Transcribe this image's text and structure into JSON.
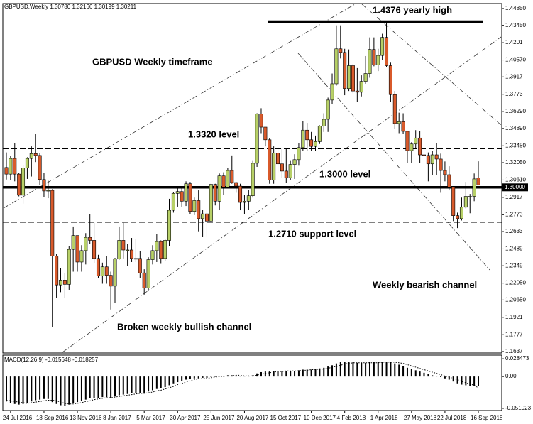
{
  "chart_data": {
    "type": "candlestick",
    "header": "GBPUSD,Weekly  1.30780 1.32166 1.30199 1.30211",
    "categories": [
      null,
      "24 Jul 2016",
      null,
      null,
      null,
      null,
      null,
      null,
      null,
      "18 Sep 2016",
      null,
      null,
      null,
      null,
      null,
      null,
      null,
      "13 Nov 2016",
      null,
      null,
      null,
      null,
      null,
      null,
      null,
      "8 Jan 2017",
      null,
      null,
      null,
      null,
      null,
      null,
      null,
      "5 Mar 2017",
      null,
      null,
      null,
      null,
      null,
      null,
      null,
      "30 Apr 2017",
      null,
      null,
      null,
      null,
      null,
      null,
      null,
      "25 Jun 2017",
      null,
      null,
      null,
      null,
      null,
      null,
      null,
      "20 Aug 2017",
      null,
      null,
      null,
      null,
      null,
      null,
      null,
      "15 Oct 2017",
      null,
      null,
      null,
      null,
      null,
      null,
      null,
      "10 Dec 2017",
      null,
      null,
      null,
      null,
      null,
      null,
      null,
      "4 Feb 2018",
      null,
      null,
      null,
      null,
      null,
      null,
      null,
      "1 Apr 2018",
      null,
      null,
      null,
      null,
      null,
      null,
      null,
      "27 May 2018",
      null,
      null,
      null,
      null,
      null,
      null,
      null,
      "22 Jul 2018",
      null,
      null,
      null,
      null,
      null,
      null,
      null,
      "16 Sep 2018"
    ],
    "open": [
      1.3165,
      1.311,
      1.324,
      1.311,
      1.2935,
      1.316,
      1.324,
      1.328,
      1.3265,
      1.3065,
      1.297,
      1.2975,
      1.243,
      1.219,
      1.223,
      1.2195,
      1.2485,
      1.26,
      1.238,
      1.2475,
      1.2585,
      1.256,
      1.241,
      1.2265,
      1.234,
      1.227,
      1.218,
      1.2405,
      1.256,
      1.248,
      1.248,
      1.241,
      1.241,
      1.229,
      1.2165,
      1.24,
      1.2475,
      1.255,
      1.241,
      1.256,
      1.281,
      1.295,
      1.2965,
      1.2885,
      1.303,
      1.28,
      1.289,
      1.274,
      1.278,
      1.272,
      1.3025,
      1.2885,
      1.3095,
      1.3,
      1.314,
      1.304,
      1.301,
      1.2875,
      1.2885,
      1.293,
      1.32,
      1.361,
      1.35,
      1.3395,
      1.306,
      1.3285,
      1.3195,
      1.3135,
      1.308,
      1.319,
      1.323,
      1.333,
      1.3475,
      1.3395,
      1.334,
      1.338,
      1.351,
      1.3565,
      1.3725,
      1.386,
      1.415,
      1.412,
      1.382,
      1.401,
      1.38,
      1.379,
      1.388,
      1.3945,
      1.4145,
      1.4015,
      1.4095,
      1.4245,
      1.401,
      1.377,
      1.353,
      1.3545,
      1.3465,
      1.3305,
      1.336,
      1.341,
      1.327,
      1.3265,
      1.3195,
      1.327,
      1.3235,
      1.314,
      1.3105,
      1.3,
      1.2765,
      1.274,
      1.2835,
      1.2925,
      1.2925,
      1.3078
    ],
    "high": [
      1.329,
      1.326,
      1.337,
      1.312,
      1.3185,
      1.325,
      1.334,
      1.3445,
      1.3285,
      1.312,
      1.3055,
      1.2985,
      1.245,
      1.233,
      1.229,
      1.251,
      1.2675,
      1.26,
      1.252,
      1.262,
      1.2775,
      1.2705,
      1.244,
      1.2375,
      1.243,
      1.23,
      1.2415,
      1.2675,
      1.2705,
      1.253,
      1.258,
      1.257,
      1.247,
      1.232,
      1.242,
      1.252,
      1.2615,
      1.256,
      1.257,
      1.2905,
      1.296,
      1.299,
      1.299,
      1.305,
      1.3045,
      1.2915,
      1.2975,
      1.2815,
      1.2815,
      1.303,
      1.303,
      1.3115,
      1.3125,
      1.316,
      1.3265,
      1.3045,
      1.303,
      1.2935,
      1.298,
      1.3225,
      1.3615,
      1.3657,
      1.35,
      1.341,
      1.334,
      1.3335,
      1.332,
      1.332,
      1.3225,
      1.3275,
      1.3365,
      1.355,
      1.3535,
      1.346,
      1.343,
      1.3515,
      1.3615,
      1.3745,
      1.3945,
      1.4345,
      1.4345,
      1.415,
      1.4145,
      1.4025,
      1.399,
      1.393,
      1.409,
      1.4245,
      1.4245,
      1.415,
      1.4275,
      1.4376,
      1.4035,
      1.38,
      1.362,
      1.3615,
      1.347,
      1.3375,
      1.3475,
      1.347,
      1.3315,
      1.329,
      1.3305,
      1.3365,
      1.328,
      1.3215,
      1.3175,
      1.3005,
      1.279,
      1.2915,
      1.3045,
      1.2945,
      1.3115,
      1.32166
    ],
    "low": [
      1.3065,
      1.306,
      1.305,
      1.2925,
      1.2865,
      1.307,
      1.309,
      1.321,
      1.302,
      1.292,
      1.291,
      1.1841,
      1.2085,
      1.213,
      1.208,
      1.215,
      1.23,
      1.23,
      1.23,
      1.236,
      1.253,
      1.237,
      1.225,
      1.22,
      1.22,
      1.1986,
      1.204,
      1.24,
      1.241,
      1.2345,
      1.238,
      1.238,
      1.225,
      1.211,
      1.214,
      1.236,
      1.238,
      1.2365,
      1.239,
      1.2515,
      1.279,
      1.284,
      1.284,
      1.2845,
      1.2775,
      1.277,
      1.2635,
      1.259,
      1.259,
      1.271,
      1.285,
      1.281,
      1.2935,
      1.299,
      1.303,
      1.2955,
      1.281,
      1.2775,
      1.2815,
      1.2915,
      1.317,
      1.345,
      1.334,
      1.303,
      1.303,
      1.3125,
      1.308,
      1.304,
      1.306,
      1.307,
      1.318,
      1.3305,
      1.3305,
      1.33,
      1.3305,
      1.336,
      1.346,
      1.346,
      1.369,
      1.3845,
      1.407,
      1.3765,
      1.38,
      1.378,
      1.371,
      1.3755,
      1.386,
      1.391,
      1.4005,
      1.3965,
      1.4055,
      1.4,
      1.371,
      1.3485,
      1.345,
      1.3445,
      1.3205,
      1.3205,
      1.3325,
      1.3205,
      1.31,
      1.305,
      1.31,
      1.31,
      1.2955,
      1.305,
      1.2975,
      1.272,
      1.2662,
      1.2725,
      1.2825,
      1.2785,
      1.2885,
      1.30199
    ],
    "close": [
      1.311,
      1.324,
      1.311,
      1.2935,
      1.316,
      1.324,
      1.328,
      1.3265,
      1.3065,
      1.297,
      1.2975,
      1.243,
      1.219,
      1.223,
      1.2195,
      1.2485,
      1.26,
      1.238,
      1.2475,
      1.2585,
      1.256,
      1.241,
      1.2265,
      1.234,
      1.227,
      1.218,
      1.2405,
      1.256,
      1.248,
      1.248,
      1.241,
      1.241,
      1.229,
      1.2165,
      1.24,
      1.2475,
      1.255,
      1.241,
      1.256,
      1.281,
      1.295,
      1.2965,
      1.2885,
      1.303,
      1.28,
      1.289,
      1.274,
      1.278,
      1.272,
      1.3025,
      1.2885,
      1.3095,
      1.3,
      1.314,
      1.304,
      1.301,
      1.2875,
      1.2885,
      1.293,
      1.32,
      1.361,
      1.35,
      1.3395,
      1.306,
      1.3285,
      1.3195,
      1.3135,
      1.308,
      1.319,
      1.323,
      1.333,
      1.3475,
      1.3395,
      1.334,
      1.338,
      1.351,
      1.3565,
      1.3725,
      1.386,
      1.415,
      1.412,
      1.382,
      1.401,
      1.38,
      1.379,
      1.388,
      1.3945,
      1.4145,
      1.4015,
      1.4095,
      1.4245,
      1.401,
      1.377,
      1.353,
      1.3545,
      1.3465,
      1.3305,
      1.336,
      1.341,
      1.327,
      1.3265,
      1.3195,
      1.327,
      1.3235,
      1.314,
      1.3105,
      1.3,
      1.2765,
      1.274,
      1.2835,
      1.2925,
      1.2925,
      1.307,
      1.30211
    ],
    "up_color": "#b7d067",
    "down_color": "#d95a2b",
    "ylim": [
      1.1625,
      1.4526
    ],
    "yticks": [
      {
        "value": 1.4485,
        "label": "1.44850"
      },
      {
        "value": 1.4345,
        "label": "1.43450"
      },
      1.4201,
      {
        "value": 1.4057,
        "label": "1.40570"
      },
      1.3917,
      1.3773,
      {
        "value": 1.3629,
        "label": "1.36290"
      },
      {
        "value": 1.3489,
        "label": "1.34890"
      },
      {
        "value": 1.3345,
        "label": "1.33450"
      },
      {
        "value": 1.3205,
        "label": "1.32050"
      },
      {
        "value": 1.3061,
        "label": "1.30610"
      },
      1.2917,
      1.2773,
      1.2633,
      1.2489,
      1.2349,
      {
        "value": 1.2205,
        "label": "1.22050"
      },
      {
        "value": 1.2065,
        "label": "1.20650"
      },
      1.1921,
      1.1777,
      1.1637
    ],
    "price_marker": {
      "value": 1.3,
      "label": "1.30000"
    },
    "hlines": [
      {
        "value": 1.4376,
        "style": "thick"
      },
      {
        "value": 1.332,
        "style": "dashed"
      },
      {
        "value": 1.3,
        "style": "thick"
      },
      {
        "value": 1.271,
        "style": "dashed"
      }
    ],
    "annotations": [
      "GBPUSD Weekly timeframe",
      "1.4376 yearly high",
      "1.3320  level",
      "1.3000  level",
      "1.2710 support level",
      "Weekly bearish channel",
      "Broken weekly bullish channel"
    ],
    "macd": {
      "title": "MACD(12,26,9) -0.015648 -0.018257",
      "ylim": [
        -0.0545,
        0.0343
      ],
      "yticks": [
        0.028473,
        {
          "value": 0,
          "label": "0.00"
        },
        -0.051023
      ],
      "histogram": [
        -0.04,
        -0.042,
        -0.044,
        -0.045,
        -0.044,
        -0.042,
        -0.04,
        -0.038,
        -0.037,
        -0.036,
        -0.036,
        -0.041,
        -0.044,
        -0.046,
        -0.047,
        -0.045,
        -0.042,
        -0.041,
        -0.039,
        -0.037,
        -0.035,
        -0.034,
        -0.034,
        -0.033,
        -0.033,
        -0.034,
        -0.032,
        -0.03,
        -0.029,
        -0.028,
        -0.027,
        -0.026,
        -0.026,
        -0.026,
        -0.024,
        -0.022,
        -0.02,
        -0.019,
        -0.017,
        -0.014,
        -0.011,
        -0.009,
        -0.007,
        -0.005,
        -0.004,
        -0.003,
        -0.003,
        -0.002,
        -0.002,
        0.0,
        0.0,
        0.001,
        0.001,
        0.002,
        0.002,
        0.002,
        0.001,
        0.001,
        0.001,
        0.002,
        0.005,
        0.007,
        0.008,
        0.008,
        0.009,
        0.009,
        0.009,
        0.009,
        0.009,
        0.009,
        0.01,
        0.011,
        0.011,
        0.011,
        0.012,
        0.013,
        0.014,
        0.016,
        0.018,
        0.021,
        0.023,
        0.023,
        0.023,
        0.023,
        0.022,
        0.022,
        0.022,
        0.023,
        0.023,
        0.023,
        0.024,
        0.024,
        0.023,
        0.021,
        0.019,
        0.017,
        0.014,
        0.012,
        0.01,
        0.008,
        0.006,
        0.004,
        0.002,
        0.001,
        -0.001,
        -0.003,
        -0.005,
        -0.008,
        -0.011,
        -0.013,
        -0.014,
        -0.015,
        -0.015,
        -0.015648
      ],
      "signal": [
        -0.038,
        -0.039,
        -0.04,
        -0.041,
        -0.042,
        -0.043,
        -0.042,
        -0.041,
        -0.04,
        -0.039,
        -0.038,
        -0.038,
        -0.039,
        -0.041,
        -0.043,
        -0.044,
        -0.044,
        -0.043,
        -0.042,
        -0.04,
        -0.039,
        -0.037,
        -0.036,
        -0.035,
        -0.034,
        -0.034,
        -0.033,
        -0.032,
        -0.031,
        -0.03,
        -0.029,
        -0.028,
        -0.027,
        -0.027,
        -0.026,
        -0.025,
        -0.023,
        -0.022,
        -0.02,
        -0.018,
        -0.016,
        -0.013,
        -0.011,
        -0.009,
        -0.007,
        -0.005,
        -0.004,
        -0.003,
        -0.003,
        -0.002,
        -0.001,
        0.0,
        0.0,
        0.001,
        0.001,
        0.002,
        0.002,
        0.001,
        0.001,
        0.001,
        0.002,
        0.004,
        0.005,
        0.006,
        0.007,
        0.008,
        0.008,
        0.009,
        0.009,
        0.009,
        0.009,
        0.01,
        0.01,
        0.011,
        0.011,
        0.012,
        0.012,
        0.013,
        0.015,
        0.016,
        0.018,
        0.02,
        0.021,
        0.022,
        0.022,
        0.022,
        0.022,
        0.022,
        0.022,
        0.022,
        0.023,
        0.023,
        0.023,
        0.023,
        0.022,
        0.021,
        0.019,
        0.017,
        0.015,
        0.013,
        0.011,
        0.009,
        0.007,
        0.005,
        0.003,
        0.001,
        -0.001,
        -0.003,
        -0.005,
        -0.008,
        -0.01,
        -0.012,
        -0.014,
        -0.018257
      ]
    }
  }
}
